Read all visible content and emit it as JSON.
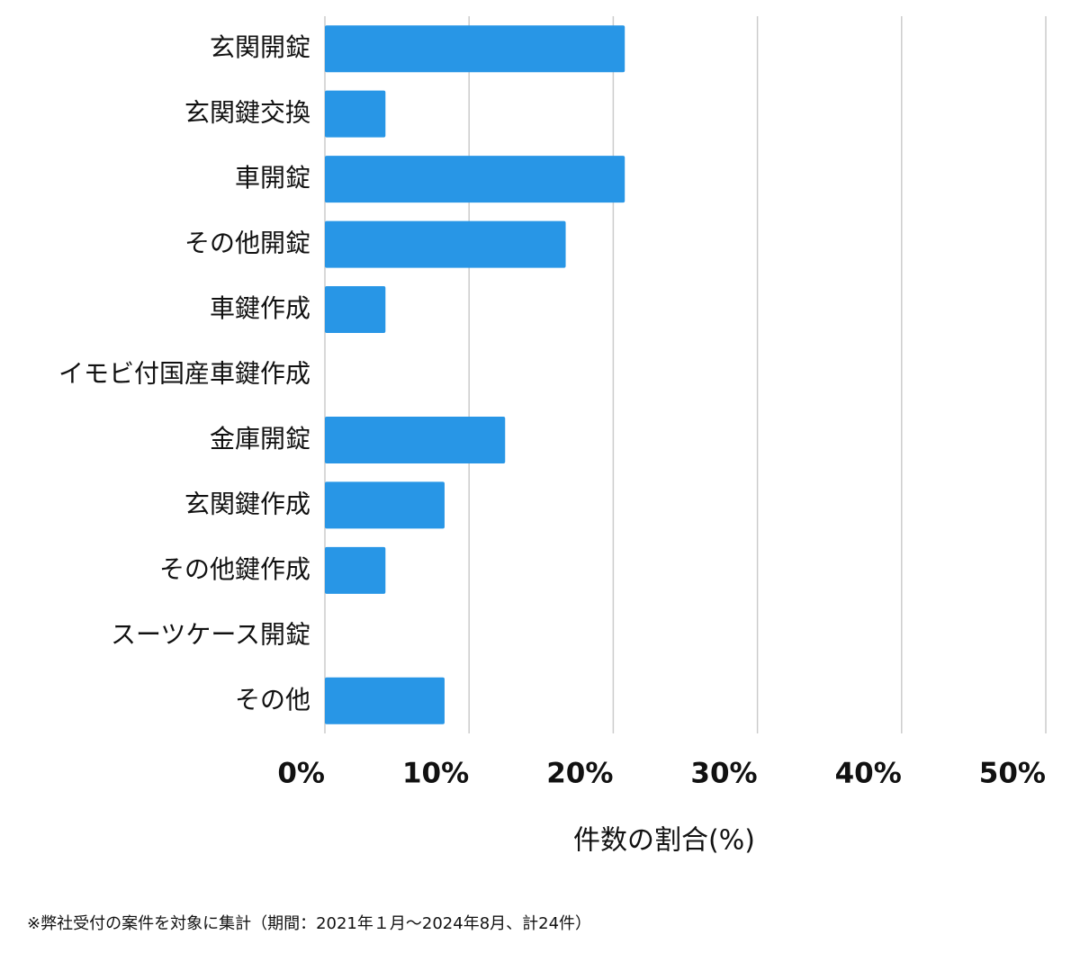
{
  "chart_data": {
    "type": "bar",
    "orientation": "horizontal",
    "categories": [
      "玄関開錠",
      "玄関鍵交換",
      "車開錠",
      "その他開錠",
      "車鍵作成",
      "イモビ付国産車鍵作成",
      "金庫開錠",
      "玄関鍵作成",
      "その他鍵作成",
      "スーツケース開錠",
      "その他"
    ],
    "values": [
      20.8,
      4.2,
      20.8,
      16.7,
      4.2,
      0,
      12.5,
      8.3,
      4.2,
      0,
      8.3
    ],
    "color": "#2896e6",
    "xlim": [
      0,
      50
    ],
    "xticks": [
      {
        "value": 0,
        "label": "0%"
      },
      {
        "value": 10,
        "label": "10%"
      },
      {
        "value": 20,
        "label": "20%"
      },
      {
        "value": 30,
        "label": "30%"
      },
      {
        "value": 40,
        "label": "40%"
      },
      {
        "value": 50,
        "label": "50%"
      }
    ],
    "x_label": "件数の割合(%)",
    "grid": true,
    "footnote": "※弊社受付の案件を対象に集計（期間：2021年１月〜2024年8月、計24件）"
  }
}
